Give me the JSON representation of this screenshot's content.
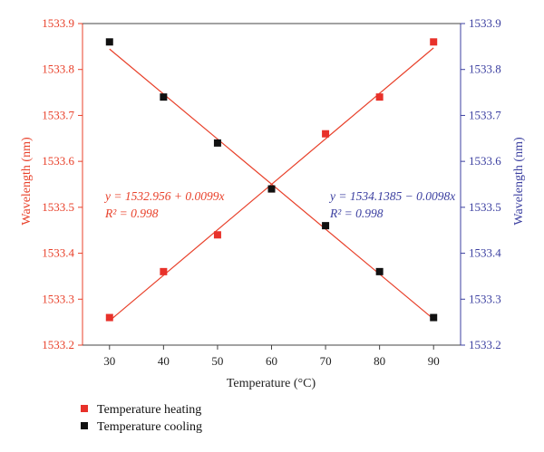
{
  "chart_data": {
    "type": "scatter",
    "x": [
      30,
      40,
      50,
      60,
      70,
      80,
      90
    ],
    "series": [
      {
        "name": "Temperature heating",
        "axis": "left",
        "color": "#e8312a",
        "values": [
          1533.26,
          1533.36,
          1533.44,
          1533.54,
          1533.66,
          1533.74,
          1533.86
        ],
        "fit": {
          "intercept": 1532.956,
          "slope": 0.0099,
          "equation": "y = 1532.956 + 0.0099x",
          "r2": "R² = 0.998"
        }
      },
      {
        "name": "Temperature cooling",
        "axis": "right",
        "color": "#111111",
        "values": [
          1533.86,
          1533.74,
          1533.64,
          1533.54,
          1533.46,
          1533.36,
          1533.26
        ],
        "fit": {
          "intercept": 1534.1385,
          "slope": -0.0098,
          "equation": "y = 1534.1385 − 0.0098x",
          "r2": "R² = 0.998"
        }
      }
    ],
    "xlabel": "Temperature (°C)",
    "ylabel_left": "Wavelength (nm)",
    "ylabel_right": "Wavelength (nm)",
    "xlim": [
      25,
      95
    ],
    "ylim": [
      1533.2,
      1533.9
    ],
    "x_ticks": [
      "30",
      "40",
      "50",
      "60",
      "70",
      "80",
      "90"
    ],
    "y_ticks": [
      "1533.2",
      "1533.3",
      "1533.4",
      "1533.5",
      "1533.6",
      "1533.7",
      "1533.8",
      "1533.9"
    ],
    "left_axis_color": "#e8402a",
    "right_axis_color": "#3b3fa0",
    "fit_line_color": "#e8402a",
    "grid": false,
    "legend_position": "bottom-left"
  }
}
